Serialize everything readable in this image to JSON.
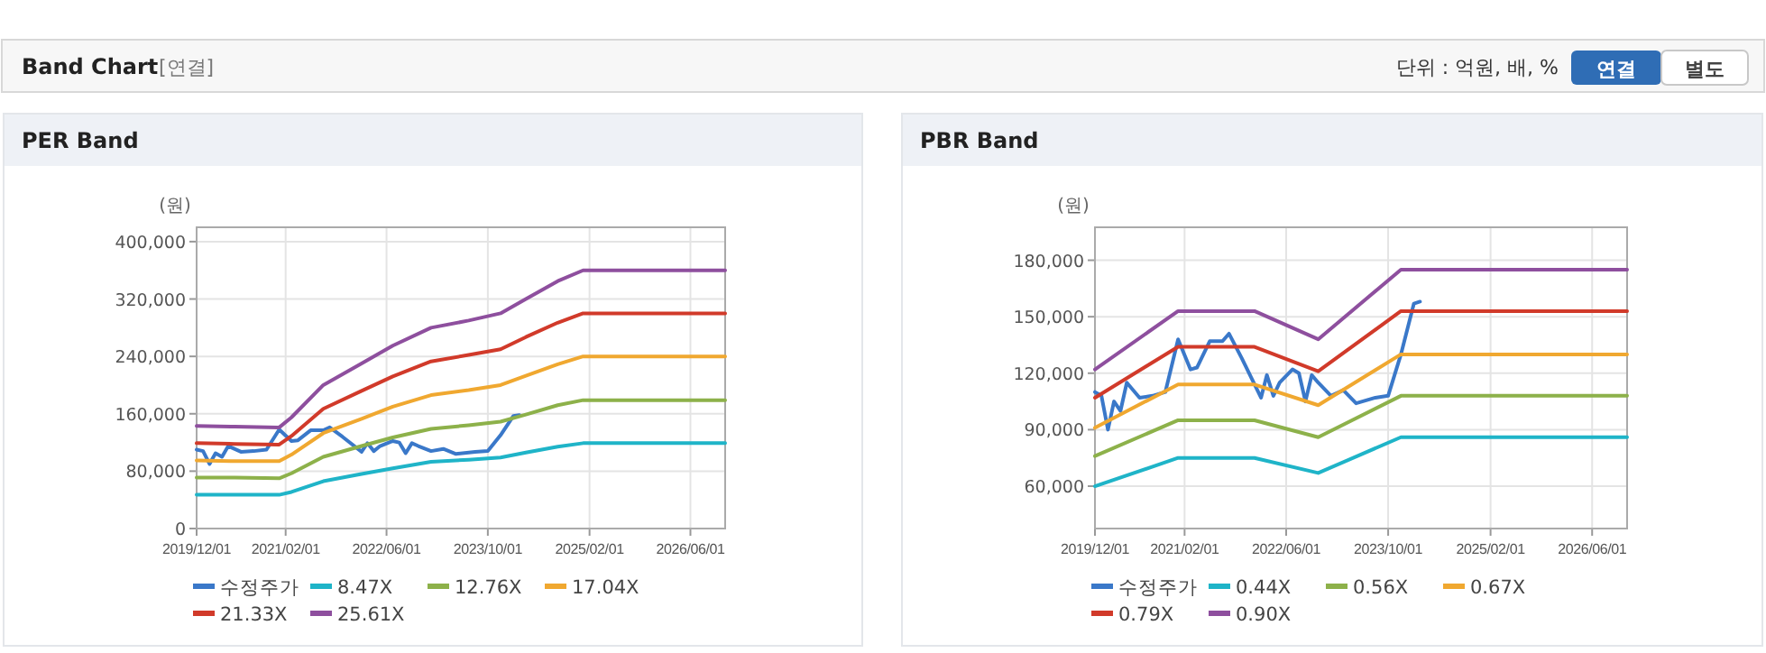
{
  "chart_data": [
    {
      "type": "other",
      "title": "Band Chart",
      "annotations": [
        "[연결]",
        "단위 : 억원, 배, %",
        "연결",
        "별도"
      ]
    },
    {
      "type": "line",
      "title": "PER Band",
      "ylabel": "(원)",
      "grid": true,
      "legend": "bottom",
      "line_style": "solid",
      "marker": "none",
      "xlim": [
        "2019-12-01",
        "2026-11-15"
      ],
      "xticks": [
        {
          "value": "2019-12-01",
          "label": "2019/12/01"
        },
        {
          "value": "2021-02-01",
          "label": "2021/02/01"
        },
        {
          "value": "2022-06-01",
          "label": "2022/06/01"
        },
        {
          "value": "2023-10-01",
          "label": "2023/10/01"
        },
        {
          "value": "2025-02-01",
          "label": "2025/02/01"
        },
        {
          "value": "2026-06-01",
          "label": "2026/06/01"
        }
      ],
      "ylim": [
        0,
        420000
      ],
      "yticks": [
        0,
        {
          "value": 80000,
          "label": "80,000"
        },
        {
          "value": 160000,
          "label": "160,000"
        },
        {
          "value": 240000,
          "label": "240,000"
        },
        {
          "value": 320000,
          "label": "320,000"
        },
        {
          "value": 400000,
          "label": "400,000"
        }
      ],
      "series": [
        {
          "name": "수정주가",
          "color": "#3a78c9",
          "x": [
            "2019-12-01",
            "2020-01-01",
            "2020-02-01",
            "2020-03-01",
            "2020-04-01",
            "2020-05-01",
            "2020-07-01",
            "2020-09-01",
            "2020-11-01",
            "2021-01-01",
            "2021-03-01",
            "2021-04-01",
            "2021-06-01",
            "2021-08-01",
            "2021-09-01",
            "2021-11-01",
            "2022-02-01",
            "2022-03-01",
            "2022-04-01",
            "2022-05-01",
            "2022-07-01",
            "2022-08-01",
            "2022-09-01",
            "2022-10-01",
            "2022-11-01",
            "2023-01-01",
            "2023-03-01",
            "2023-05-01",
            "2023-08-01",
            "2023-10-01",
            "2023-12-01",
            "2024-02-01",
            "2024-03-01"
          ],
          "values": [
            110000,
            108000,
            90000,
            105000,
            100000,
            115000,
            107000,
            108000,
            110000,
            138000,
            122000,
            123000,
            137000,
            137000,
            141000,
            128000,
            107000,
            119000,
            108000,
            115000,
            122000,
            120000,
            105000,
            119000,
            115000,
            108000,
            111000,
            104000,
            107000,
            108000,
            130000,
            157000,
            158000
          ]
        },
        {
          "name": "8.47X",
          "color": "#1fb4c8",
          "x": [
            "2019-12-01",
            "2020-06-01",
            "2021-01-01",
            "2021-03-01",
            "2021-08-01",
            "2022-02-01",
            "2022-07-01",
            "2023-01-01",
            "2023-07-01",
            "2023-12-01",
            "2024-04-01",
            "2024-09-01",
            "2025-01-01",
            "2026-11-15"
          ],
          "values": [
            47000,
            47000,
            47000,
            51000,
            66000,
            76000,
            84000,
            93000,
            96000,
            99000,
            106000,
            114000,
            119000,
            119000
          ]
        },
        {
          "name": "12.76X",
          "color": "#8db14a",
          "x": [
            "2019-12-01",
            "2020-06-01",
            "2021-01-01",
            "2021-03-01",
            "2021-08-01",
            "2022-02-01",
            "2022-07-01",
            "2023-01-01",
            "2023-07-01",
            "2023-12-01",
            "2024-04-01",
            "2024-09-01",
            "2025-01-01",
            "2026-11-15"
          ],
          "values": [
            71000,
            71000,
            70000,
            77000,
            100000,
            115000,
            127000,
            139000,
            144000,
            149000,
            159000,
            172000,
            179000,
            179000
          ]
        },
        {
          "name": "17.04X",
          "color": "#f0a830",
          "x": [
            "2019-12-01",
            "2020-06-01",
            "2021-01-01",
            "2021-03-01",
            "2021-08-01",
            "2022-02-01",
            "2022-07-01",
            "2023-01-01",
            "2023-07-01",
            "2023-12-01",
            "2024-04-01",
            "2024-09-01",
            "2025-01-01",
            "2026-11-15"
          ],
          "values": [
            95000,
            94000,
            94000,
            103000,
            133000,
            153000,
            170000,
            186000,
            193000,
            200000,
            213000,
            229000,
            240000,
            240000
          ]
        },
        {
          "name": "21.33X",
          "color": "#d13a2a",
          "x": [
            "2019-12-01",
            "2020-06-01",
            "2021-01-01",
            "2021-03-01",
            "2021-08-01",
            "2022-02-01",
            "2022-07-01",
            "2023-01-01",
            "2023-07-01",
            "2023-12-01",
            "2024-04-01",
            "2024-09-01",
            "2025-01-01",
            "2026-11-15"
          ],
          "values": [
            119000,
            118000,
            117000,
            129000,
            167000,
            192000,
            212000,
            233000,
            242000,
            250000,
            267000,
            287000,
            300000,
            300000
          ]
        },
        {
          "name": "25.61X",
          "color": "#8e4f9e",
          "x": [
            "2019-12-01",
            "2020-06-01",
            "2021-01-01",
            "2021-03-01",
            "2021-08-01",
            "2022-02-01",
            "2022-07-01",
            "2023-01-01",
            "2023-07-01",
            "2023-12-01",
            "2024-04-01",
            "2024-09-01",
            "2025-01-01",
            "2026-11-15"
          ],
          "values": [
            143000,
            142000,
            141000,
            155000,
            200000,
            230000,
            255000,
            280000,
            290000,
            300000,
            320000,
            345000,
            360000,
            360000
          ]
        }
      ]
    },
    {
      "type": "line",
      "title": "PBR Band",
      "ylabel": "(원)",
      "grid": true,
      "legend": "bottom",
      "line_style": "solid",
      "marker": "none",
      "xlim": [
        "2019-12-01",
        "2026-11-15"
      ],
      "xticks": [
        {
          "value": "2019-12-01",
          "label": "2019/12/01"
        },
        {
          "value": "2021-02-01",
          "label": "2021/02/01"
        },
        {
          "value": "2022-06-01",
          "label": "2022/06/01"
        },
        {
          "value": "2023-10-01",
          "label": "2023/10/01"
        },
        {
          "value": "2025-02-01",
          "label": "2025/02/01"
        },
        {
          "value": "2026-06-01",
          "label": "2026/06/01"
        }
      ],
      "ylim": [
        37500,
        197500
      ],
      "yticks": [
        {
          "value": 60000,
          "label": "60,000"
        },
        {
          "value": 90000,
          "label": "90,000"
        },
        {
          "value": 120000,
          "label": "120,000"
        },
        {
          "value": 150000,
          "label": "150,000"
        },
        {
          "value": 180000,
          "label": "180,000"
        }
      ],
      "series": [
        {
          "name": "수정주가",
          "color": "#3a78c9",
          "x": [
            "2019-12-01",
            "2020-01-01",
            "2020-02-01",
            "2020-03-01",
            "2020-04-01",
            "2020-05-01",
            "2020-07-01",
            "2020-09-01",
            "2020-11-01",
            "2021-01-01",
            "2021-03-01",
            "2021-04-01",
            "2021-06-01",
            "2021-08-01",
            "2021-09-01",
            "2021-11-01",
            "2022-02-01",
            "2022-03-01",
            "2022-04-01",
            "2022-05-01",
            "2022-07-01",
            "2022-08-01",
            "2022-09-01",
            "2022-10-01",
            "2022-11-01",
            "2023-01-01",
            "2023-03-01",
            "2023-05-01",
            "2023-08-01",
            "2023-10-01",
            "2023-12-01",
            "2024-02-01",
            "2024-03-01"
          ],
          "values": [
            110000,
            108000,
            90000,
            105000,
            100000,
            115000,
            107000,
            108000,
            110000,
            138000,
            122000,
            123000,
            137000,
            137000,
            141000,
            128000,
            107000,
            119000,
            108000,
            115000,
            122000,
            120000,
            105000,
            119000,
            115000,
            108000,
            111000,
            104000,
            107000,
            108000,
            130000,
            157000,
            158000
          ]
        },
        {
          "name": "0.44X",
          "color": "#1fb4c8",
          "x": [
            "2019-12-01",
            "2021-01-01",
            "2022-01-01",
            "2022-11-01",
            "2023-12-01",
            "2026-11-15"
          ],
          "values": [
            60000,
            75000,
            75000,
            67000,
            86000,
            86000
          ]
        },
        {
          "name": "0.56X",
          "color": "#8db14a",
          "x": [
            "2019-12-01",
            "2021-01-01",
            "2022-01-01",
            "2022-11-01",
            "2023-12-01",
            "2026-11-15"
          ],
          "values": [
            76000,
            95000,
            95000,
            86000,
            108000,
            108000
          ]
        },
        {
          "name": "0.67X",
          "color": "#f0a830",
          "x": [
            "2019-12-01",
            "2021-01-01",
            "2022-01-01",
            "2022-11-01",
            "2023-12-01",
            "2026-11-15"
          ],
          "values": [
            91000,
            114000,
            114000,
            103000,
            130000,
            130000
          ]
        },
        {
          "name": "0.79X",
          "color": "#d13a2a",
          "x": [
            "2019-12-01",
            "2021-01-01",
            "2022-01-01",
            "2022-11-01",
            "2023-12-01",
            "2026-11-15"
          ],
          "values": [
            107000,
            134000,
            134000,
            121000,
            153000,
            153000
          ]
        },
        {
          "name": "0.90X",
          "color": "#8e4f9e",
          "x": [
            "2019-12-01",
            "2021-01-01",
            "2022-01-01",
            "2022-11-01",
            "2023-12-01",
            "2026-11-15"
          ],
          "values": [
            122000,
            153000,
            153000,
            138000,
            175000,
            175000
          ]
        }
      ]
    }
  ]
}
